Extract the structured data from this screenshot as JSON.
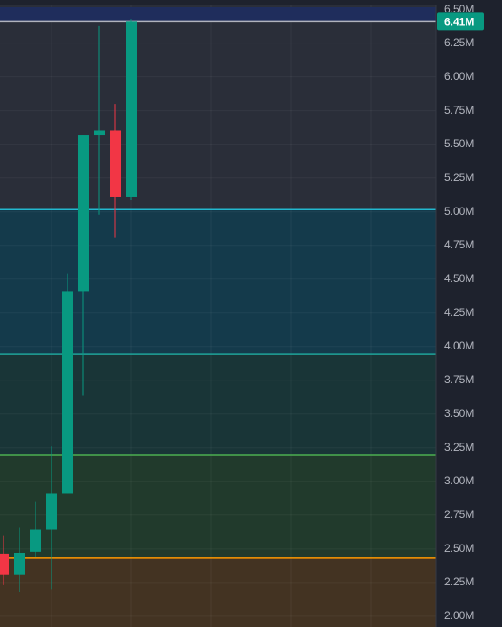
{
  "chart_data": {
    "type": "candlestick",
    "categories": [
      null,
      null,
      null,
      null,
      null,
      null,
      null,
      null,
      null
    ],
    "open": [
      2460000,
      2310000,
      2480000,
      2640000,
      2910000,
      4410000,
      5570000,
      5600000,
      5110000
    ],
    "high": [
      2600000,
      2660000,
      2850000,
      3260000,
      4540000,
      5570000,
      6380000,
      5800000,
      6430000
    ],
    "low": [
      2230000,
      2180000,
      2440000,
      2200000,
      2910000,
      3640000,
      4980000,
      4810000,
      5090000
    ],
    "close": [
      2310000,
      2470000,
      2640000,
      2910000,
      4410000,
      5570000,
      5600000,
      5110000,
      6410000
    ],
    "up_color": "#089981",
    "down_color": "#f23645",
    "ylim": [
      1920000,
      6570000
    ],
    "yticks": [
      {
        "value": 2000000,
        "label": "2.00M"
      },
      {
        "value": 2250000,
        "label": "2.25M"
      },
      {
        "value": 2500000,
        "label": "2.50M"
      },
      {
        "value": 2750000,
        "label": "2.75M"
      },
      {
        "value": 3000000,
        "label": "3.00M"
      },
      {
        "value": 3250000,
        "label": "3.25M"
      },
      {
        "value": 3500000,
        "label": "3.50M"
      },
      {
        "value": 3750000,
        "label": "3.75M"
      },
      {
        "value": 4000000,
        "label": "4.00M"
      },
      {
        "value": 4250000,
        "label": "4.25M"
      },
      {
        "value": 4500000,
        "label": "4.50M"
      },
      {
        "value": 4750000,
        "label": "4.75M"
      },
      {
        "value": 5000000,
        "label": "5.00M"
      },
      {
        "value": 5250000,
        "label": "5.25M"
      },
      {
        "value": 5500000,
        "label": "5.50M"
      },
      {
        "value": 5750000,
        "label": "5.75M"
      },
      {
        "value": 6000000,
        "label": "6.00M"
      },
      {
        "value": 6250000,
        "label": "6.25M"
      },
      {
        "value": 6500000,
        "label": "6.50M"
      }
    ],
    "grid": true,
    "levels": [
      {
        "value": 5016000,
        "color": "#22b8cf",
        "fill": "#143a4b"
      },
      {
        "value": 3945000,
        "color": "#1fa39a",
        "fill": "#193537"
      },
      {
        "value": 3196000,
        "color": "#4caf50",
        "fill": "#213a2c"
      },
      {
        "value": 2434000,
        "color": "#ff9800",
        "fill": "#433322"
      }
    ],
    "last_price": {
      "value": 6410000,
      "label": "6.41M",
      "color": "#089981"
    }
  }
}
